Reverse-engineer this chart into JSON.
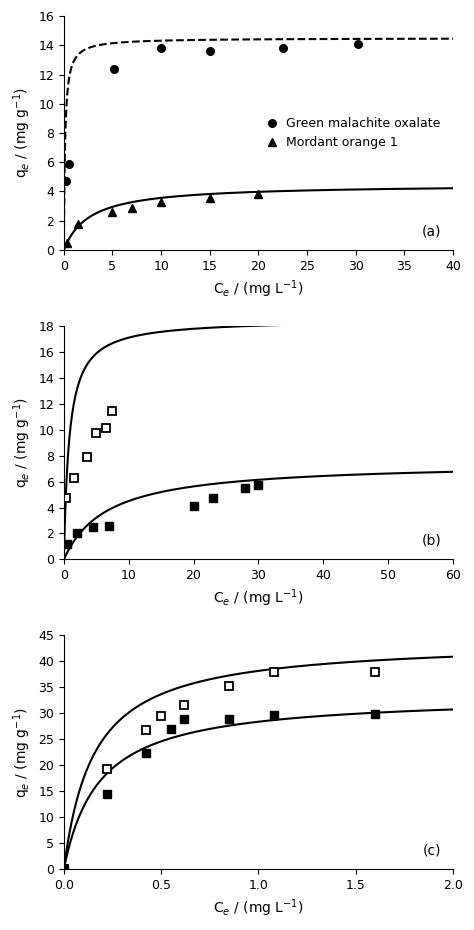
{
  "panel_a": {
    "title_label": "(a)",
    "xlabel": "C$_e$ / (mg L$^{-1}$)",
    "ylabel": "q$_e$ / (mg g$^{-1}$)",
    "xlim": [
      0,
      40
    ],
    "ylim": [
      0,
      16
    ],
    "xticks": [
      0,
      5,
      10,
      15,
      20,
      25,
      30,
      35,
      40
    ],
    "yticks": [
      0,
      2,
      4,
      6,
      8,
      10,
      12,
      14,
      16
    ],
    "series1_label": "Green malachite oxalate",
    "series1_marker": "o",
    "series1_x": [
      0.25,
      0.55,
      5.2,
      10.0,
      15.0,
      22.5,
      30.2
    ],
    "series1_y": [
      4.7,
      5.9,
      12.4,
      13.8,
      13.6,
      13.8,
      14.1
    ],
    "series1_line_style": "--",
    "series1_langmuir_qmax": 14.5,
    "series1_langmuir_KL": 8.0,
    "series2_label": "Mordant orange 1",
    "series2_marker": "^",
    "series2_x": [
      0.3,
      1.5,
      5.0,
      7.0,
      10.0,
      15.0,
      20.0
    ],
    "series2_y": [
      0.5,
      1.8,
      2.6,
      2.85,
      3.3,
      3.55,
      3.85
    ],
    "series2_line_style": "-",
    "series2_langmuir_qmax": 4.5,
    "series2_langmuir_KL": 0.38
  },
  "panel_b": {
    "title_label": "(b)",
    "xlabel": "C$_e$ / (mg L$^{-1}$)",
    "ylabel": "q$_e$ / (mg g$^{-1}$)",
    "xlim": [
      0,
      60
    ],
    "ylim": [
      0,
      18
    ],
    "xticks": [
      0,
      10,
      20,
      30,
      40,
      50,
      60
    ],
    "yticks": [
      0,
      2,
      4,
      6,
      8,
      10,
      12,
      14,
      16,
      18
    ],
    "series1_marker": "s",
    "series1_x": [
      0.4,
      1.5,
      3.5,
      5.0,
      6.5,
      7.5
    ],
    "series1_y": [
      4.7,
      6.3,
      7.9,
      9.7,
      10.1,
      11.4
    ],
    "series1_langmuir_qmax": 18.5,
    "series1_langmuir_KL": 1.2,
    "series2_marker": "s",
    "series2_x": [
      0.5,
      2.0,
      4.5,
      7.0,
      20.0,
      23.0,
      28.0,
      30.0
    ],
    "series2_y": [
      1.2,
      2.0,
      2.5,
      2.6,
      4.1,
      4.7,
      5.5,
      5.7
    ],
    "series2_langmuir_qmax": 7.5,
    "series2_langmuir_KL": 0.15
  },
  "panel_c": {
    "title_label": "(c)",
    "xlabel": "C$_e$ / (mg L$^{-1}$)",
    "ylabel": "q$_e$ / (mg g$^{-1}$)",
    "xlim": [
      0,
      2.0
    ],
    "ylim": [
      0,
      45
    ],
    "xticks": [
      0.0,
      0.5,
      1.0,
      1.5,
      2.0
    ],
    "yticks": [
      0,
      5,
      10,
      15,
      20,
      25,
      30,
      35,
      40,
      45
    ],
    "series1_marker": "s",
    "series1_x": [
      0.0,
      0.22,
      0.42,
      0.5,
      0.62,
      0.85,
      1.08,
      1.6
    ],
    "series1_y": [
      0.0,
      19.3,
      26.7,
      29.5,
      31.5,
      35.2,
      37.9,
      38.0
    ],
    "series1_langmuir_qmax": 44.0,
    "series1_langmuir_KL": 6.5,
    "series2_marker": "s",
    "series2_x": [
      0.0,
      0.22,
      0.42,
      0.55,
      0.62,
      0.85,
      1.08,
      1.6
    ],
    "series2_y": [
      0.0,
      14.5,
      22.3,
      27.0,
      28.8,
      28.9,
      29.6,
      29.8
    ],
    "series2_langmuir_qmax": 33.5,
    "series2_langmuir_KL": 5.5
  },
  "line_color": "#000000",
  "marker_color": "#000000",
  "label_fontsize": 10,
  "tick_fontsize": 9,
  "legend_fontsize": 9
}
